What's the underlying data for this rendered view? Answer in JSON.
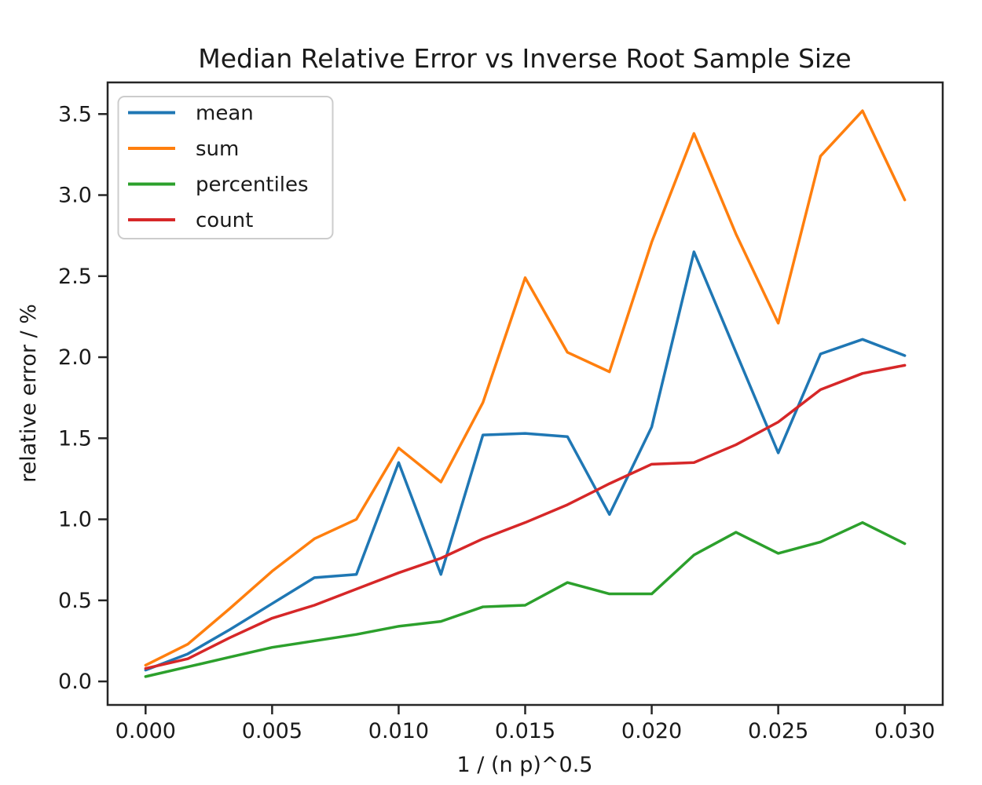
{
  "figure": {
    "background": "#ffffff",
    "text_color": "#1a1a1a",
    "spine_color": "#262626"
  },
  "chart_data": {
    "type": "line",
    "title": "Median Relative Error vs Inverse Root Sample Size",
    "xlabel": "1 / (n p)^0.5",
    "ylabel": "relative error / %",
    "grid": false,
    "legend_position": "upper left",
    "legend_entries": [
      "mean",
      "sum",
      "percentiles",
      "count"
    ],
    "xlim": [
      -0.0015,
      0.0315
    ],
    "ylim": [
      -0.145,
      3.695
    ],
    "xticks": [
      0.0,
      0.005,
      0.01,
      0.015,
      0.02,
      0.025,
      0.03
    ],
    "xtick_labels": [
      "0.000",
      "0.005",
      "0.010",
      "0.015",
      "0.020",
      "0.025",
      "0.030"
    ],
    "yticks": [
      0.0,
      0.5,
      1.0,
      1.5,
      2.0,
      2.5,
      3.0,
      3.5
    ],
    "ytick_labels": [
      "0.0",
      "0.5",
      "1.0",
      "1.5",
      "2.0",
      "2.5",
      "3.0",
      "3.5"
    ],
    "x": [
      0.0,
      0.00167,
      0.00333,
      0.005,
      0.00667,
      0.00833,
      0.01,
      0.01167,
      0.01333,
      0.015,
      0.01667,
      0.01833,
      0.02,
      0.02167,
      0.02333,
      0.025,
      0.02667,
      0.02833,
      0.03
    ],
    "series": [
      {
        "name": "mean",
        "color": "#1f77b4",
        "values": [
          0.07,
          0.17,
          0.32,
          0.48,
          0.64,
          0.66,
          1.35,
          0.66,
          1.52,
          1.53,
          1.51,
          1.03,
          1.57,
          2.65,
          2.03,
          1.41,
          2.02,
          2.11,
          2.01
        ]
      },
      {
        "name": "sum",
        "color": "#ff7f0e",
        "values": [
          0.1,
          0.23,
          0.45,
          0.68,
          0.88,
          1.0,
          1.44,
          1.23,
          1.72,
          2.49,
          2.03,
          1.91,
          2.71,
          3.38,
          2.76,
          2.21,
          3.24,
          3.52,
          2.97
        ]
      },
      {
        "name": "percentiles",
        "color": "#2ca02c",
        "values": [
          0.03,
          0.09,
          0.15,
          0.21,
          0.25,
          0.29,
          0.34,
          0.37,
          0.46,
          0.47,
          0.61,
          0.54,
          0.54,
          0.78,
          0.92,
          0.79,
          0.86,
          0.98,
          0.85
        ]
      },
      {
        "name": "count",
        "color": "#d62728",
        "values": [
          0.08,
          0.14,
          0.27,
          0.39,
          0.47,
          0.57,
          0.67,
          0.76,
          0.88,
          0.98,
          1.09,
          1.22,
          1.34,
          1.35,
          1.46,
          1.6,
          1.8,
          1.9,
          1.95
        ]
      }
    ]
  }
}
